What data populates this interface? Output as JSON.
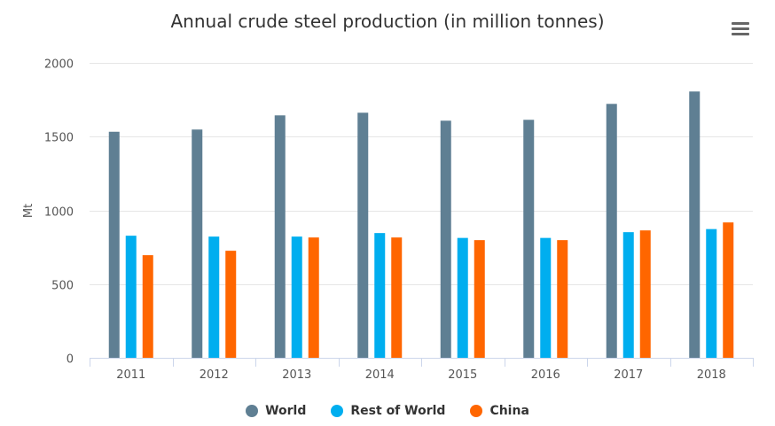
{
  "chart_data": {
    "type": "bar",
    "title": "Annual crude steel production (in million tonnes)",
    "xlabel": "",
    "ylabel": "Mt",
    "ylim": [
      0,
      2000
    ],
    "yticks": [
      0,
      500,
      1000,
      1500,
      2000
    ],
    "grid": true,
    "legend_position": "bottom-center",
    "categories": [
      "2011",
      "2012",
      "2013",
      "2014",
      "2015",
      "2016",
      "2017",
      "2018"
    ],
    "series": [
      {
        "name": "World",
        "color": "#5f7f93",
        "values": [
          1533,
          1548,
          1644,
          1662,
          1608,
          1614,
          1722,
          1806
        ]
      },
      {
        "name": "Rest of World",
        "color": "#00aeef",
        "values": [
          828,
          822,
          822,
          846,
          813,
          813,
          852,
          873
        ]
      },
      {
        "name": "China",
        "color": "#ff6600",
        "values": [
          696,
          726,
          816,
          816,
          798,
          798,
          864,
          918
        ]
      }
    ]
  },
  "ui": {
    "menu_icon": "hamburger-menu-icon"
  }
}
